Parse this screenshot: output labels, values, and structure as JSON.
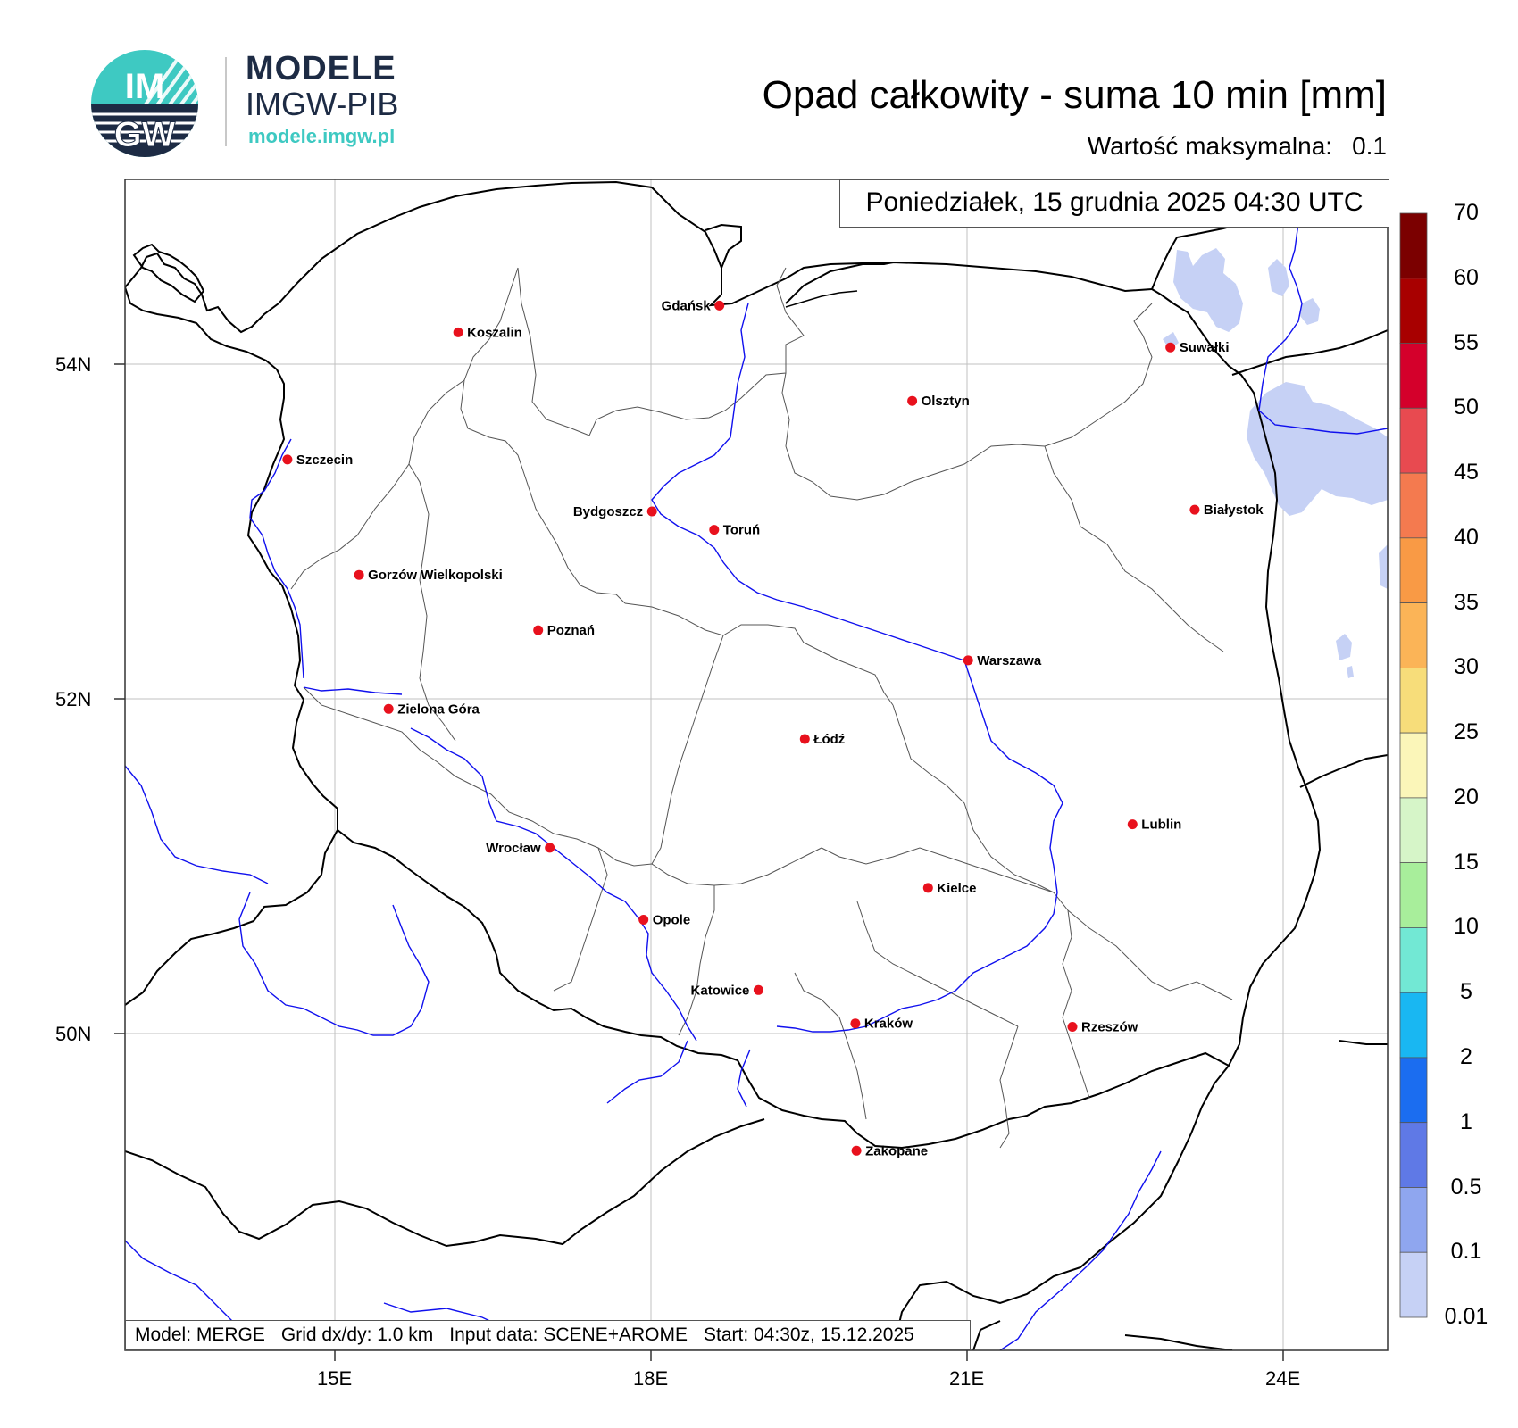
{
  "logo": {
    "circle_text_top": "IM",
    "circle_text_bottom": "GW",
    "line1": "MODELE",
    "line2": "IMGW-PIB",
    "url": "modele.imgw.pl"
  },
  "title": "Opad całkowity - suma 10 min [mm]",
  "max_value": {
    "label": "Wartość maksymalna:",
    "value": "0.1"
  },
  "date_label": "Poniedziałek, 15 grudnia 2025 04:30 UTC",
  "info": {
    "model": "Model: MERGE",
    "grid": "Grid dx/dy: 1.0 km",
    "input": "Input data: SCENE+AROME",
    "start": "Start: 04:30z, 15.12.2025"
  },
  "axes": {
    "lat_ticks": [
      "54N",
      "52N",
      "50N"
    ],
    "lon_ticks": [
      "15E",
      "18E",
      "21E",
      "24E"
    ]
  },
  "colorbar": {
    "labels": [
      "70",
      "60",
      "55",
      "50",
      "45",
      "40",
      "35",
      "30",
      "25",
      "20",
      "15",
      "10",
      "5",
      "2",
      "1",
      "0.5",
      "0.1",
      "0.01"
    ],
    "colors": [
      "#7b0000",
      "#a80000",
      "#d4002b",
      "#e84a50",
      "#f47a4f",
      "#f99a45",
      "#fbb457",
      "#f7dd7a",
      "#fbf6b9",
      "#d6f5c8",
      "#a8ee9b",
      "#72e8d4",
      "#19b7f2",
      "#1b6df0",
      "#5f79e6",
      "#8fa6ef",
      "#c6d1f5"
    ]
  },
  "cities": [
    {
      "name": "Gdańsk",
      "lat": 54.35,
      "lon": 18.65
    },
    {
      "name": "Koszalin",
      "lat": 54.19,
      "lon": 16.17
    },
    {
      "name": "Suwałki",
      "lat": 54.1,
      "lon": 22.93
    },
    {
      "name": "Olsztyn",
      "lat": 53.78,
      "lon": 20.48
    },
    {
      "name": "Szczecin",
      "lat": 53.43,
      "lon": 14.55
    },
    {
      "name": "Bydgoszcz",
      "lat": 53.12,
      "lon": 18.01
    },
    {
      "name": "Białystok",
      "lat": 53.13,
      "lon": 23.16
    },
    {
      "name": "Toruń",
      "lat": 53.01,
      "lon": 18.6
    },
    {
      "name": "Gorzów Wielkopolski",
      "lat": 52.74,
      "lon": 15.23
    },
    {
      "name": "Poznań",
      "lat": 52.41,
      "lon": 16.93
    },
    {
      "name": "Warszawa",
      "lat": 52.23,
      "lon": 21.01
    },
    {
      "name": "Zielona Góra",
      "lat": 51.94,
      "lon": 15.51
    },
    {
      "name": "Łódź",
      "lat": 51.76,
      "lon": 19.46
    },
    {
      "name": "Lublin",
      "lat": 51.25,
      "lon": 22.57
    },
    {
      "name": "Wrocław",
      "lat": 51.11,
      "lon": 17.04
    },
    {
      "name": "Kielce",
      "lat": 50.87,
      "lon": 20.63
    },
    {
      "name": "Opole",
      "lat": 50.68,
      "lon": 17.93
    },
    {
      "name": "Katowice",
      "lat": 50.26,
      "lon": 19.02
    },
    {
      "name": "Kraków",
      "lat": 50.06,
      "lon": 19.94
    },
    {
      "name": "Rzeszów",
      "lat": 50.04,
      "lon": 22.0
    },
    {
      "name": "Zakopane",
      "lat": 49.3,
      "lon": 19.95
    }
  ],
  "colors": {
    "city_dot": "#e8111d",
    "river": "#1010ee",
    "precip": "#c6d1f5",
    "grid": "#c0c0c0",
    "logo_teal": "#3ec9c2",
    "logo_navy": "#1d2b44"
  }
}
